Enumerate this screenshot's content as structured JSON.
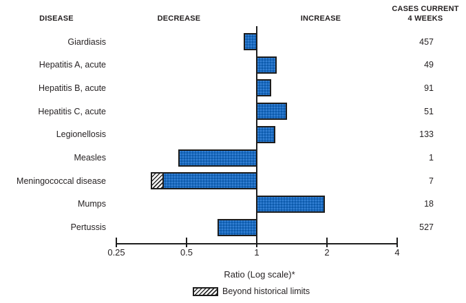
{
  "header": {
    "disease": "DISEASE",
    "decrease": "DECREASE",
    "increase": "INCREASE",
    "cases_line1": "CASES CURRENT",
    "cases_line2": "4 WEEKS"
  },
  "chart_data": {
    "type": "bar",
    "orientation": "horizontal",
    "scale": "log",
    "baseline": 1,
    "xlim": [
      0.25,
      4
    ],
    "x_ticks": [
      "0.25",
      "0.5",
      "1",
      "2",
      "4"
    ],
    "xlabel": "Ratio (Log scale)*",
    "legend": {
      "label": "Beyond historical limits",
      "style": "diagonal-hatch"
    },
    "colors": {
      "bar_fill": "#1a6bc2",
      "bar_border": "#1c1c1c",
      "text": "#231f20"
    },
    "rows": [
      {
        "disease": "Giardiasis",
        "ratio": 0.88,
        "cases": "457",
        "beyond_historical_limits": false
      },
      {
        "disease": "Hepatitis A, acute",
        "ratio": 1.22,
        "cases": "49",
        "beyond_historical_limits": false
      },
      {
        "disease": "Hepatitis B, acute",
        "ratio": 1.15,
        "cases": "91",
        "beyond_historical_limits": false
      },
      {
        "disease": "Hepatitis C, acute",
        "ratio": 1.35,
        "cases": "51",
        "beyond_historical_limits": false
      },
      {
        "disease": "Legionellosis",
        "ratio": 1.2,
        "cases": "133",
        "beyond_historical_limits": false
      },
      {
        "disease": "Measles",
        "ratio": 0.46,
        "cases": "1",
        "beyond_historical_limits": false
      },
      {
        "disease": "Meningococcal disease",
        "ratio": 0.35,
        "cases": "7",
        "beyond_historical_limits": true,
        "hatch_from": 0.35,
        "hatch_to": 0.39
      },
      {
        "disease": "Mumps",
        "ratio": 1.96,
        "cases": "18",
        "beyond_historical_limits": false
      },
      {
        "disease": "Pertussis",
        "ratio": 0.68,
        "cases": "527",
        "beyond_historical_limits": false
      }
    ]
  }
}
